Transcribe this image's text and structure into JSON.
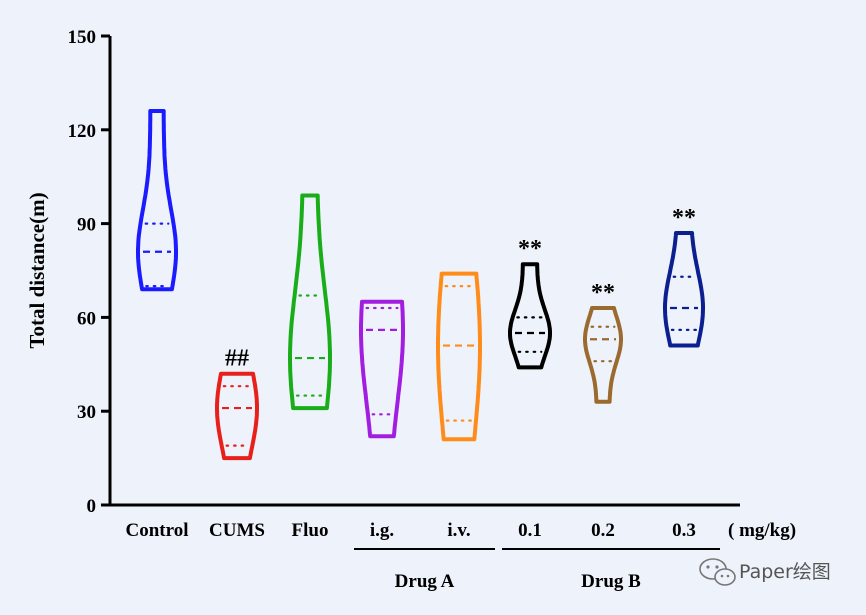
{
  "chart_data": {
    "type": "violin",
    "ylabel": "Total distance(m)",
    "xlabel": "",
    "ylim": [
      0,
      150
    ],
    "yticks": [
      0,
      30,
      60,
      90,
      120,
      150
    ],
    "unit_label": "(   mg/kg)",
    "categories": [
      "Control",
      "CUMS",
      "Fluo",
      "i.g.",
      "i.v.",
      "0.1",
      "0.2",
      "0.3"
    ],
    "groups": [
      {
        "label": "Drug A",
        "members": [
          "i.g.",
          "i.v."
        ]
      },
      {
        "label": "Drug B",
        "members": [
          "0.1",
          "0.2",
          "0.3"
        ]
      }
    ],
    "series": [
      {
        "category": "Control",
        "color": "#1b1bff",
        "min": 69,
        "max": 126,
        "q1": 70,
        "median": 81,
        "q3": 90,
        "annotation": ""
      },
      {
        "category": "CUMS",
        "color": "#e8201c",
        "min": 15,
        "max": 42,
        "q1": 19,
        "median": 31,
        "q3": 38,
        "annotation": "##"
      },
      {
        "category": "Fluo",
        "color": "#1aad1a",
        "min": 31,
        "max": 99,
        "q1": 35,
        "median": 47,
        "q3": 67,
        "annotation": ""
      },
      {
        "category": "i.g.",
        "color": "#a11ee0",
        "min": 22,
        "max": 65,
        "q1": 29,
        "median": 56,
        "q3": 63,
        "annotation": ""
      },
      {
        "category": "i.v.",
        "color": "#ff8c1a",
        "min": 21,
        "max": 74,
        "q1": 27,
        "median": 51,
        "q3": 70,
        "annotation": ""
      },
      {
        "category": "0.1",
        "color": "#000000",
        "min": 44,
        "max": 77,
        "q1": 49,
        "median": 55,
        "q3": 60,
        "annotation": "**"
      },
      {
        "category": "0.2",
        "color": "#9a6a2e",
        "min": 33,
        "max": 63,
        "q1": 46,
        "median": 53,
        "q3": 57,
        "annotation": "**"
      },
      {
        "category": "0.3",
        "color": "#0c1f8f",
        "min": 51,
        "max": 87,
        "q1": 56,
        "median": 63,
        "q3": 73,
        "annotation": "**"
      }
    ]
  },
  "watermark": {
    "icon": "wechat-icon",
    "text": "Paper绘图"
  }
}
